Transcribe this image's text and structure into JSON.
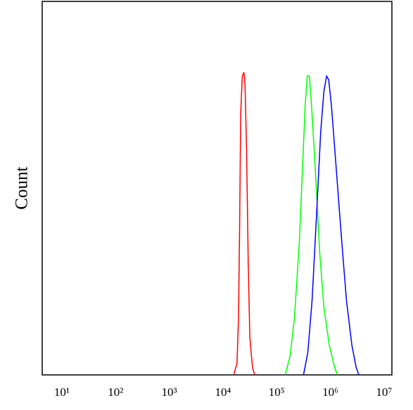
{
  "chart_data": {
    "type": "line",
    "y_label": "Count",
    "xscale": "log",
    "xlim": [
      4.3,
      14000000
    ],
    "ylim": [
      0,
      100
    ],
    "xticks": [
      {
        "value": 10,
        "label": "10¹"
      },
      {
        "value": 100,
        "label": "10²"
      },
      {
        "value": 1000,
        "label": "10³"
      },
      {
        "value": 10000,
        "label": "10⁴"
      },
      {
        "value": 100000,
        "label": "10⁵"
      },
      {
        "value": 1000000,
        "label": "10⁶"
      },
      {
        "value": 10000000,
        "label": "10⁷"
      }
    ],
    "series": [
      {
        "color": "#ff0000",
        "x": [
          15849,
          18197,
          19498,
          20417,
          21380,
          22909,
          24547,
          25704,
          27542,
          29512,
          31623,
          35481,
          38905
        ],
        "values": [
          0,
          3,
          15,
          40,
          70,
          80,
          81,
          78,
          60,
          30,
          10,
          2,
          0
        ]
      },
      {
        "color": "#00ff00",
        "x": [
          144544,
          177828,
          213796,
          263027,
          301995,
          338844,
          371535,
          407380,
          446684,
          524807,
          630957,
          758578,
          954993,
          1202264,
          1348963
        ],
        "values": [
          0,
          5,
          15,
          35,
          55,
          72,
          80,
          80,
          72,
          55,
          33,
          18,
          8,
          2,
          0
        ]
      },
      {
        "color": "#0000ff",
        "x": [
          316228,
          380189,
          457088,
          562341,
          660693,
          758578,
          851138,
          933254,
          1047129,
          1258925,
          1584893,
          1995262,
          2511886,
          3019952,
          3388442
        ],
        "values": [
          0,
          6,
          20,
          45,
          65,
          76,
          80,
          79,
          72,
          57,
          38,
          20,
          8,
          2,
          0
        ]
      }
    ]
  }
}
